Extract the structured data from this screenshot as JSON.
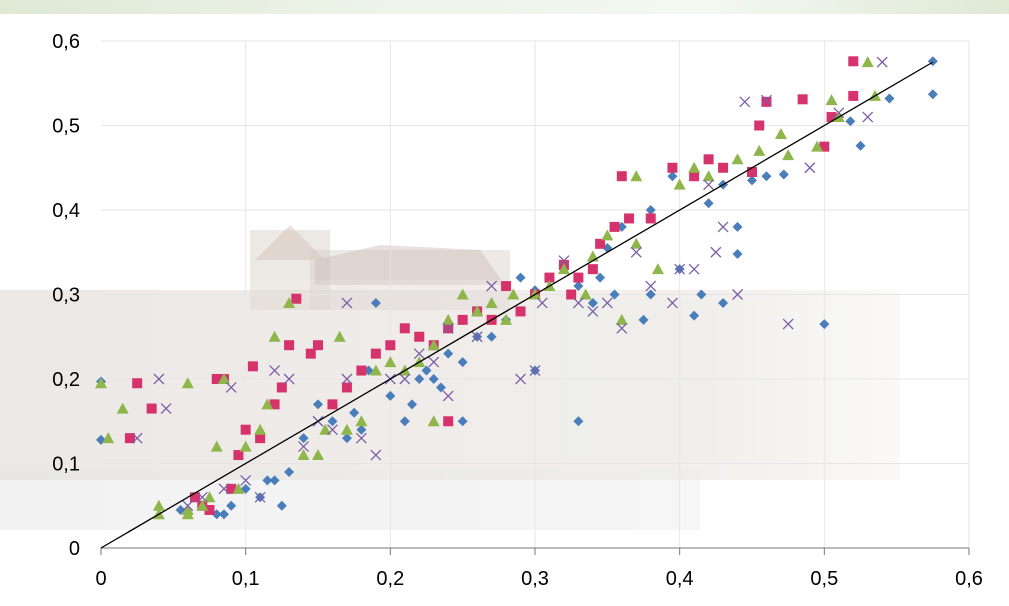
{
  "chart_data": {
    "type": "scatter",
    "title": "",
    "xlabel": "",
    "ylabel": "",
    "xlim": [
      0,
      0.6
    ],
    "ylim": [
      0,
      0.6
    ],
    "xticks": [
      "0",
      "0,1",
      "0,2",
      "0,3",
      "0,4",
      "0,5",
      "0,6"
    ],
    "yticks": [
      "0",
      "0,1",
      "0,2",
      "0,3",
      "0,4",
      "0,5",
      "0,6"
    ],
    "grid": true,
    "legend": "none",
    "reference_line": {
      "from": [
        0,
        0
      ],
      "to": [
        0.575,
        0.575
      ],
      "color": "#000000"
    },
    "series": [
      {
        "marker": "diamond",
        "color": "#4a7ebb",
        "points": [
          [
            0.575,
            0.576
          ],
          [
            0.575,
            0.537
          ],
          [
            0.545,
            0.532
          ],
          [
            0.525,
            0.476
          ],
          [
            0.518,
            0.505
          ],
          [
            0.5,
            0.475
          ],
          [
            0.5,
            0.265
          ],
          [
            0.472,
            0.442
          ],
          [
            0.46,
            0.44
          ],
          [
            0.45,
            0.435
          ],
          [
            0.44,
            0.38
          ],
          [
            0.44,
            0.348
          ],
          [
            0.43,
            0.43
          ],
          [
            0.42,
            0.408
          ],
          [
            0.43,
            0.29
          ],
          [
            0.415,
            0.3
          ],
          [
            0.41,
            0.275
          ],
          [
            0.4,
            0.33
          ],
          [
            0.395,
            0.44
          ],
          [
            0.38,
            0.4
          ],
          [
            0.38,
            0.3
          ],
          [
            0.375,
            0.27
          ],
          [
            0.36,
            0.38
          ],
          [
            0.355,
            0.3
          ],
          [
            0.35,
            0.355
          ],
          [
            0.345,
            0.32
          ],
          [
            0.34,
            0.29
          ],
          [
            0.33,
            0.31
          ],
          [
            0.33,
            0.15
          ],
          [
            0.32,
            0.33
          ],
          [
            0.31,
            0.32
          ],
          [
            0.3,
            0.305
          ],
          [
            0.3,
            0.21
          ],
          [
            0.29,
            0.32
          ],
          [
            0.29,
            0.28
          ],
          [
            0.28,
            0.27
          ],
          [
            0.27,
            0.25
          ],
          [
            0.26,
            0.25
          ],
          [
            0.25,
            0.22
          ],
          [
            0.24,
            0.23
          ],
          [
            0.235,
            0.19
          ],
          [
            0.23,
            0.2
          ],
          [
            0.225,
            0.21
          ],
          [
            0.22,
            0.2
          ],
          [
            0.215,
            0.17
          ],
          [
            0.21,
            0.15
          ],
          [
            0.2,
            0.18
          ],
          [
            0.19,
            0.29
          ],
          [
            0.185,
            0.21
          ],
          [
            0.18,
            0.14
          ],
          [
            0.175,
            0.16
          ],
          [
            0.17,
            0.13
          ],
          [
            0.16,
            0.15
          ],
          [
            0.15,
            0.17
          ],
          [
            0.14,
            0.13
          ],
          [
            0.13,
            0.09
          ],
          [
            0.125,
            0.05
          ],
          [
            0.12,
            0.08
          ],
          [
            0.115,
            0.08
          ],
          [
            0.11,
            0.06
          ],
          [
            0.1,
            0.07
          ],
          [
            0.09,
            0.05
          ],
          [
            0.085,
            0.04
          ],
          [
            0.08,
            0.04
          ],
          [
            0.07,
            0.05
          ],
          [
            0.06,
            0.04
          ],
          [
            0.055,
            0.045
          ],
          [
            0.0,
            0.197
          ],
          [
            0.0,
            0.128
          ],
          [
            0.02,
            0.13
          ],
          [
            0.24,
            0.15
          ],
          [
            0.25,
            0.15
          ]
        ]
      },
      {
        "marker": "square",
        "color": "#d6336c",
        "points": [
          [
            0.52,
            0.576
          ],
          [
            0.52,
            0.535
          ],
          [
            0.505,
            0.51
          ],
          [
            0.5,
            0.475
          ],
          [
            0.485,
            0.531
          ],
          [
            0.46,
            0.528
          ],
          [
            0.455,
            0.5
          ],
          [
            0.45,
            0.445
          ],
          [
            0.43,
            0.45
          ],
          [
            0.42,
            0.46
          ],
          [
            0.41,
            0.44
          ],
          [
            0.395,
            0.45
          ],
          [
            0.38,
            0.39
          ],
          [
            0.36,
            0.44
          ],
          [
            0.365,
            0.39
          ],
          [
            0.355,
            0.38
          ],
          [
            0.345,
            0.36
          ],
          [
            0.34,
            0.33
          ],
          [
            0.33,
            0.32
          ],
          [
            0.325,
            0.3
          ],
          [
            0.32,
            0.335
          ],
          [
            0.31,
            0.32
          ],
          [
            0.3,
            0.3
          ],
          [
            0.29,
            0.28
          ],
          [
            0.28,
            0.31
          ],
          [
            0.27,
            0.27
          ],
          [
            0.26,
            0.28
          ],
          [
            0.25,
            0.27
          ],
          [
            0.24,
            0.26
          ],
          [
            0.23,
            0.24
          ],
          [
            0.22,
            0.25
          ],
          [
            0.21,
            0.26
          ],
          [
            0.2,
            0.24
          ],
          [
            0.19,
            0.23
          ],
          [
            0.18,
            0.21
          ],
          [
            0.17,
            0.19
          ],
          [
            0.16,
            0.17
          ],
          [
            0.15,
            0.24
          ],
          [
            0.145,
            0.23
          ],
          [
            0.135,
            0.295
          ],
          [
            0.13,
            0.24
          ],
          [
            0.125,
            0.19
          ],
          [
            0.12,
            0.17
          ],
          [
            0.11,
            0.13
          ],
          [
            0.105,
            0.215
          ],
          [
            0.1,
            0.14
          ],
          [
            0.095,
            0.11
          ],
          [
            0.09,
            0.07
          ],
          [
            0.085,
            0.2
          ],
          [
            0.08,
            0.2
          ],
          [
            0.075,
            0.045
          ],
          [
            0.07,
            0.05
          ],
          [
            0.065,
            0.06
          ],
          [
            0.025,
            0.195
          ],
          [
            0.02,
            0.13
          ],
          [
            0.035,
            0.165
          ],
          [
            0.24,
            0.15
          ]
        ]
      },
      {
        "marker": "triangle",
        "color": "#8fb64a",
        "points": [
          [
            0.53,
            0.575
          ],
          [
            0.535,
            0.535
          ],
          [
            0.51,
            0.51
          ],
          [
            0.505,
            0.53
          ],
          [
            0.495,
            0.475
          ],
          [
            0.475,
            0.465
          ],
          [
            0.47,
            0.49
          ],
          [
            0.455,
            0.47
          ],
          [
            0.44,
            0.46
          ],
          [
            0.42,
            0.44
          ],
          [
            0.41,
            0.45
          ],
          [
            0.4,
            0.43
          ],
          [
            0.385,
            0.33
          ],
          [
            0.37,
            0.44
          ],
          [
            0.37,
            0.36
          ],
          [
            0.36,
            0.27
          ],
          [
            0.35,
            0.37
          ],
          [
            0.34,
            0.345
          ],
          [
            0.335,
            0.3
          ],
          [
            0.32,
            0.33
          ],
          [
            0.31,
            0.31
          ],
          [
            0.3,
            0.3
          ],
          [
            0.285,
            0.3
          ],
          [
            0.28,
            0.27
          ],
          [
            0.27,
            0.29
          ],
          [
            0.26,
            0.28
          ],
          [
            0.25,
            0.3
          ],
          [
            0.24,
            0.27
          ],
          [
            0.23,
            0.24
          ],
          [
            0.22,
            0.22
          ],
          [
            0.21,
            0.21
          ],
          [
            0.2,
            0.22
          ],
          [
            0.19,
            0.21
          ],
          [
            0.18,
            0.15
          ],
          [
            0.17,
            0.14
          ],
          [
            0.165,
            0.25
          ],
          [
            0.155,
            0.14
          ],
          [
            0.15,
            0.11
          ],
          [
            0.14,
            0.11
          ],
          [
            0.13,
            0.29
          ],
          [
            0.12,
            0.25
          ],
          [
            0.115,
            0.17
          ],
          [
            0.11,
            0.14
          ],
          [
            0.1,
            0.12
          ],
          [
            0.095,
            0.07
          ],
          [
            0.085,
            0.2
          ],
          [
            0.08,
            0.12
          ],
          [
            0.075,
            0.06
          ],
          [
            0.07,
            0.05
          ],
          [
            0.06,
            0.045
          ],
          [
            0.04,
            0.05
          ],
          [
            0.04,
            0.04
          ],
          [
            0.06,
            0.04
          ],
          [
            0.06,
            0.195
          ],
          [
            0.005,
            0.13
          ],
          [
            0.015,
            0.165
          ],
          [
            0.0,
            0.195
          ],
          [
            0.23,
            0.15
          ]
        ]
      },
      {
        "marker": "x",
        "color": "#7b5ea7",
        "points": [
          [
            0.54,
            0.575
          ],
          [
            0.53,
            0.51
          ],
          [
            0.51,
            0.515
          ],
          [
            0.49,
            0.45
          ],
          [
            0.475,
            0.265
          ],
          [
            0.46,
            0.53
          ],
          [
            0.445,
            0.528
          ],
          [
            0.44,
            0.3
          ],
          [
            0.43,
            0.38
          ],
          [
            0.425,
            0.35
          ],
          [
            0.42,
            0.43
          ],
          [
            0.41,
            0.33
          ],
          [
            0.4,
            0.33
          ],
          [
            0.395,
            0.29
          ],
          [
            0.38,
            0.31
          ],
          [
            0.37,
            0.35
          ],
          [
            0.36,
            0.26
          ],
          [
            0.35,
            0.29
          ],
          [
            0.34,
            0.28
          ],
          [
            0.33,
            0.29
          ],
          [
            0.32,
            0.34
          ],
          [
            0.305,
            0.29
          ],
          [
            0.3,
            0.21
          ],
          [
            0.29,
            0.2
          ],
          [
            0.27,
            0.31
          ],
          [
            0.26,
            0.25
          ],
          [
            0.24,
            0.26
          ],
          [
            0.23,
            0.22
          ],
          [
            0.22,
            0.23
          ],
          [
            0.21,
            0.2
          ],
          [
            0.2,
            0.2
          ],
          [
            0.19,
            0.11
          ],
          [
            0.18,
            0.13
          ],
          [
            0.17,
            0.2
          ],
          [
            0.16,
            0.14
          ],
          [
            0.15,
            0.15
          ],
          [
            0.14,
            0.12
          ],
          [
            0.13,
            0.2
          ],
          [
            0.12,
            0.21
          ],
          [
            0.11,
            0.06
          ],
          [
            0.1,
            0.08
          ],
          [
            0.09,
            0.19
          ],
          [
            0.085,
            0.07
          ],
          [
            0.07,
            0.06
          ],
          [
            0.06,
            0.05
          ],
          [
            0.04,
            0.2
          ],
          [
            0.045,
            0.165
          ],
          [
            0.025,
            0.13
          ],
          [
            0.17,
            0.29
          ],
          [
            0.24,
            0.18
          ]
        ]
      }
    ]
  }
}
